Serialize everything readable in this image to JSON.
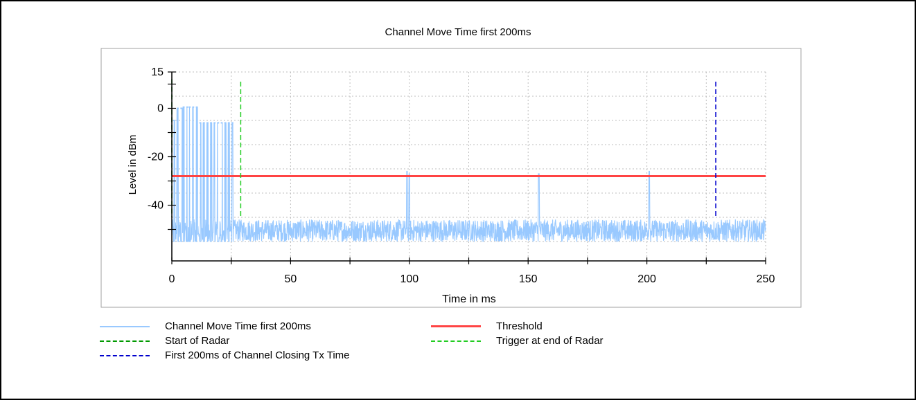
{
  "chart_data": {
    "type": "line",
    "title": "Channel Move Time first 200ms",
    "xlabel": "Time in ms",
    "ylabel": "Level in dBm",
    "xlim": [
      0,
      250
    ],
    "ylim": [
      -63,
      15
    ],
    "x_ticks": [
      0,
      50,
      100,
      150,
      200,
      250
    ],
    "y_ticks": [
      15,
      0,
      -20,
      -40
    ],
    "grid": true,
    "legend_placement": "bottom",
    "series": [
      {
        "name": "Channel Move Time first 200ms",
        "color": "#99c9ff",
        "noise_floor_dbm": [
          -55,
          -46
        ],
        "bursts": [
          {
            "x": 1,
            "level": -5
          },
          {
            "x": 2.5,
            "level": 0
          },
          {
            "x": 4,
            "level": 0
          },
          {
            "x": 5,
            "level": 0.5
          },
          {
            "x": 6.5,
            "level": 0.5
          },
          {
            "x": 7.5,
            "level": 0.5
          },
          {
            "x": 9,
            "level": 0.5
          },
          {
            "x": 10.5,
            "level": 0.5
          },
          {
            "x": 12,
            "level": -6
          },
          {
            "x": 13.5,
            "level": -6
          },
          {
            "x": 15,
            "level": -6
          },
          {
            "x": 16.5,
            "level": -6
          },
          {
            "x": 18,
            "level": -6
          },
          {
            "x": 19.5,
            "level": -6
          },
          {
            "x": 21,
            "level": -6
          },
          {
            "x": 22.5,
            "level": -6
          },
          {
            "x": 24,
            "level": -6
          },
          {
            "x": 25.5,
            "level": -6
          }
        ],
        "spikes": [
          {
            "x": 99,
            "level": -26
          },
          {
            "x": 100,
            "level": -27
          },
          {
            "x": 154.5,
            "level": -27
          },
          {
            "x": 201,
            "level": -26
          }
        ]
      },
      {
        "name": "Threshold",
        "color": "#ff4444",
        "values": [
          {
            "x": 0,
            "y": -28
          },
          {
            "x": 250,
            "y": -28
          }
        ]
      },
      {
        "name": "Start of Radar",
        "color": "#009900",
        "x": 0
      },
      {
        "name": "Trigger at end of Radar",
        "color": "#22cc22",
        "x": 29
      },
      {
        "name": "First 200ms of Channel Closing Tx Time",
        "color": "#0000cc",
        "x": 229
      }
    ]
  },
  "legend": [
    {
      "label": "Channel Move Time first 200ms",
      "color": "#99c9ff",
      "style": "solid"
    },
    {
      "label": "Threshold",
      "color": "#ff4444",
      "style": "solid"
    },
    {
      "label": "Start of Radar",
      "color": "#009900",
      "style": "dashed"
    },
    {
      "label": "Trigger at end of Radar",
      "color": "#22cc22",
      "style": "dashed"
    },
    {
      "label": "First 200ms of Channel Closing Tx Time",
      "color": "#0000cc",
      "style": "dashed"
    }
  ]
}
